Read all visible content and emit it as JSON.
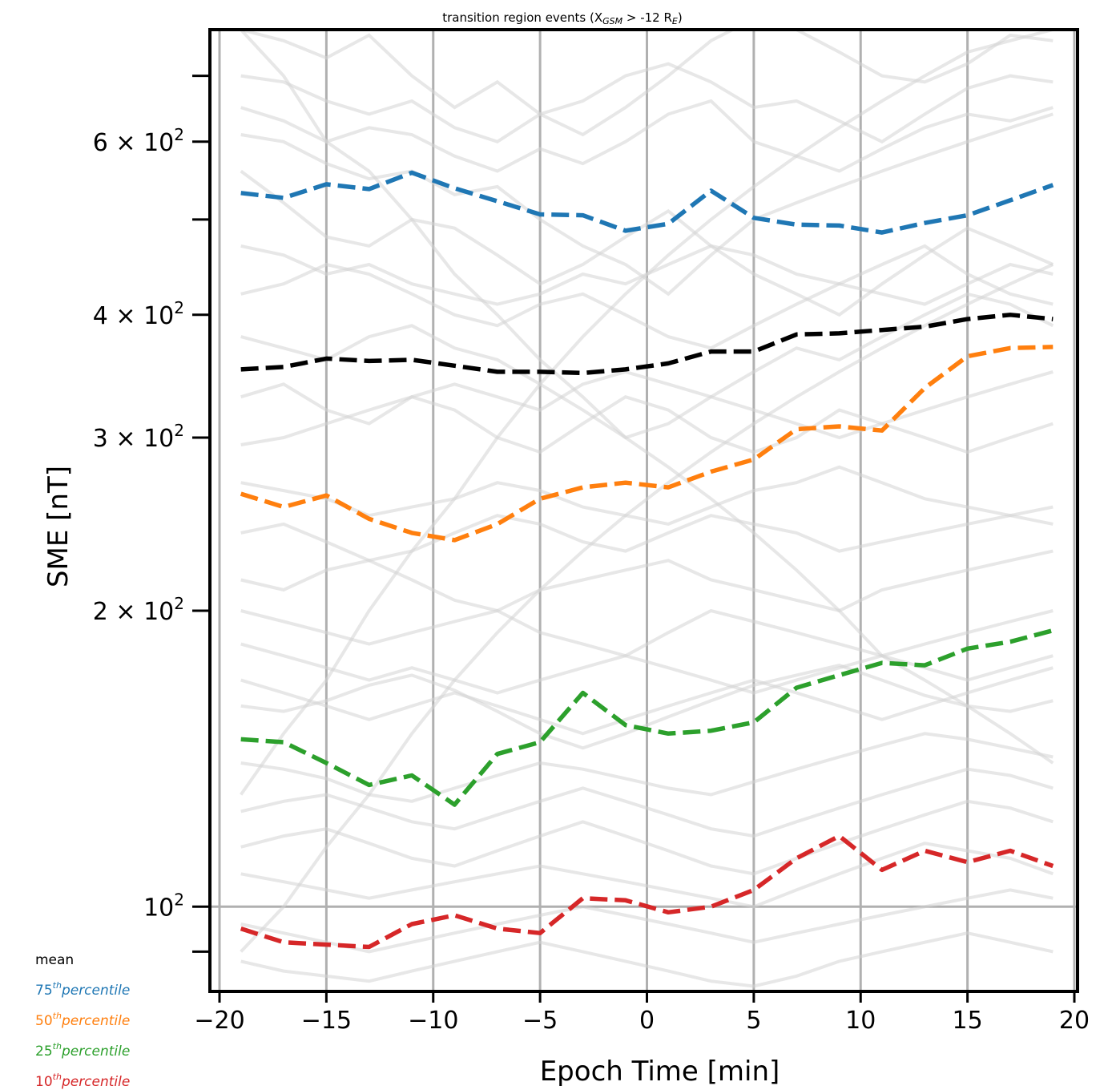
{
  "chart_data": {
    "type": "line",
    "title_prefix": "transition region events (X",
    "title_subscript": "GSM",
    "title_middle": " > -12 R",
    "title_subscript2": "E",
    "title_suffix": ")",
    "xlabel": "Epoch Time [min]",
    "ylabel": "SME [nT]",
    "xlim": [
      -20,
      20
    ],
    "ylim": [
      82,
      780
    ],
    "yscale": "log",
    "grid": "vertical lines on x ticks, horizontal line at 10^2",
    "x_ticks": [
      -20,
      -15,
      -10,
      -5,
      0,
      5,
      10,
      15,
      20
    ],
    "x_tick_labels": [
      "−20",
      "−15",
      "−10",
      "−5",
      "0",
      "5",
      "10",
      "15",
      "20"
    ],
    "y_ticks": [
      {
        "value": 100,
        "base": "10",
        "exp": "2",
        "coef": ""
      },
      {
        "value": 200,
        "base": "10",
        "exp": "2",
        "coef": "2 × "
      },
      {
        "value": 300,
        "base": "10",
        "exp": "2",
        "coef": "3 × "
      },
      {
        "value": 400,
        "base": "10",
        "exp": "2",
        "coef": "4 × "
      },
      {
        "value": 600,
        "base": "10",
        "exp": "2",
        "coef": "6 × "
      }
    ],
    "y_minor_ticks": [
      90,
      500,
      700
    ],
    "x": [
      -19,
      -17,
      -15,
      -13,
      -11,
      -9,
      -7,
      -5,
      -3,
      -1,
      1,
      3,
      5,
      7,
      9,
      11,
      13,
      15,
      17,
      19
    ],
    "series": [
      {
        "name": "mean",
        "color": "#000000",
        "values": [
          352,
          354,
          361,
          359,
          360,
          355,
          350,
          350,
          349,
          352,
          357,
          367,
          367,
          382,
          383,
          386,
          389,
          396,
          400,
          396
        ]
      },
      {
        "name": "75th percentile",
        "color": "#1f77b4",
        "values": [
          532,
          526,
          543,
          537,
          558,
          538,
          522,
          506,
          505,
          487,
          495,
          535,
          502,
          494,
          493,
          485,
          496,
          505,
          523,
          542
        ]
      },
      {
        "name": "50th percentile",
        "color": "#ff7f0e",
        "values": [
          263,
          255,
          262,
          248,
          240,
          236,
          245,
          260,
          267,
          270,
          267,
          277,
          285,
          306,
          308,
          305,
          337,
          363,
          370,
          371
        ]
      },
      {
        "name": "25th percentile",
        "color": "#2ca02c",
        "values": [
          148,
          147,
          140,
          133,
          136,
          127,
          143,
          147,
          165,
          153,
          150,
          151,
          154,
          167,
          172,
          177,
          176,
          183,
          186,
          191
        ]
      },
      {
        "name": "10th percentile",
        "color": "#d62728",
        "values": [
          95,
          92,
          91.5,
          91,
          96,
          98,
          95,
          94,
          102,
          101.5,
          98.7,
          100,
          104,
          112,
          118,
          109,
          114,
          111,
          114,
          110
        ]
      }
    ],
    "background_lines_color": "#d3d3d3",
    "background_lines": [
      [
        780,
        760,
        730,
        770,
        700,
        650,
        690,
        640,
        610,
        650,
        700,
        760,
        800,
        780,
        740,
        700,
        690,
        720,
        770,
        760
      ],
      [
        700,
        690,
        660,
        640,
        660,
        620,
        600,
        640,
        660,
        700,
        720,
        690,
        650,
        660,
        630,
        600,
        640,
        680,
        700,
        690
      ],
      [
        650,
        630,
        600,
        620,
        610,
        580,
        560,
        590,
        570,
        600,
        640,
        660,
        600,
        580,
        560,
        590,
        620,
        640,
        630,
        650
      ],
      [
        610,
        600,
        570,
        550,
        560,
        530,
        540,
        500,
        470,
        450,
        420,
        460,
        500,
        520,
        540,
        560,
        580,
        600,
        620,
        640
      ],
      [
        560,
        520,
        480,
        470,
        500,
        490,
        460,
        430,
        450,
        480,
        510,
        470,
        440,
        420,
        400,
        430,
        460,
        490,
        470,
        450
      ],
      [
        470,
        460,
        440,
        450,
        430,
        420,
        410,
        420,
        440,
        430,
        450,
        470,
        460,
        440,
        430,
        420,
        410,
        430,
        450,
        440
      ],
      [
        420,
        430,
        450,
        440,
        420,
        400,
        390,
        410,
        420,
        400,
        380,
        370,
        390,
        410,
        430,
        450,
        470,
        440,
        420,
        410
      ],
      [
        380,
        370,
        360,
        380,
        390,
        370,
        360,
        340,
        320,
        300,
        310,
        330,
        350,
        370,
        360,
        380,
        400,
        420,
        410,
        390
      ],
      [
        330,
        340,
        320,
        310,
        330,
        320,
        300,
        290,
        310,
        330,
        320,
        300,
        290,
        300,
        320,
        310,
        300,
        290,
        300,
        310
      ],
      [
        295,
        300,
        310,
        320,
        330,
        340,
        330,
        320,
        340,
        350,
        340,
        330,
        320,
        310,
        300,
        310,
        320,
        330,
        340,
        350
      ],
      [
        270,
        265,
        260,
        250,
        255,
        260,
        270,
        265,
        255,
        250,
        245,
        255,
        265,
        270,
        280,
        270,
        260,
        255,
        250,
        245
      ],
      [
        240,
        245,
        235,
        225,
        230,
        240,
        250,
        245,
        235,
        230,
        240,
        250,
        245,
        240,
        230,
        235,
        240,
        245,
        250,
        255
      ],
      [
        215,
        210,
        220,
        225,
        215,
        205,
        200,
        210,
        215,
        220,
        225,
        215,
        210,
        205,
        200,
        210,
        215,
        220,
        225,
        230
      ],
      [
        200,
        195,
        190,
        185,
        190,
        195,
        200,
        190,
        185,
        180,
        190,
        200,
        195,
        190,
        185,
        180,
        185,
        190,
        195,
        200
      ],
      [
        185,
        180,
        175,
        170,
        175,
        170,
        165,
        170,
        175,
        180,
        175,
        170,
        165,
        170,
        175,
        180,
        175,
        170,
        175,
        180
      ],
      [
        170,
        165,
        160,
        155,
        160,
        165,
        160,
        155,
        150,
        155,
        160,
        165,
        170,
        165,
        160,
        155,
        160,
        165,
        170,
        175
      ],
      [
        160,
        158,
        162,
        168,
        172,
        166,
        158,
        150,
        145,
        150,
        156,
        162,
        168,
        172,
        176,
        170,
        164,
        160,
        158,
        162
      ],
      [
        140,
        138,
        135,
        130,
        128,
        132,
        136,
        140,
        138,
        135,
        132,
        130,
        134,
        138,
        142,
        146,
        150,
        148,
        145,
        142
      ],
      [
        125,
        128,
        130,
        126,
        122,
        120,
        124,
        128,
        132,
        128,
        124,
        120,
        118,
        122,
        126,
        130,
        134,
        138,
        136,
        132
      ],
      [
        115,
        118,
        120,
        116,
        112,
        110,
        114,
        118,
        122,
        118,
        114,
        110,
        108,
        112,
        116,
        120,
        124,
        128,
        126,
        122
      ],
      [
        108,
        106,
        104,
        102,
        104,
        106,
        108,
        110,
        108,
        106,
        104,
        102,
        100,
        104,
        108,
        112,
        116,
        114,
        112,
        108
      ],
      [
        96,
        94,
        92,
        90,
        92,
        94,
        96,
        98,
        100,
        98,
        96,
        94,
        92,
        94,
        96,
        98,
        100,
        102,
        104,
        102
      ],
      [
        88,
        86,
        85,
        84,
        86,
        88,
        90,
        92,
        90,
        88,
        86,
        84,
        83,
        85,
        88,
        90,
        92,
        94,
        92,
        90
      ],
      [
        780,
        700,
        600,
        560,
        500,
        440,
        400,
        360,
        330,
        300,
        280,
        260,
        240,
        220,
        200,
        180,
        170,
        160,
        150,
        140
      ],
      [
        130,
        150,
        170,
        200,
        230,
        260,
        300,
        340,
        380,
        420,
        460,
        500,
        540,
        580,
        620,
        660,
        700,
        740,
        760,
        780
      ],
      [
        90,
        100,
        115,
        130,
        150,
        170,
        190,
        210,
        230,
        250,
        270,
        290,
        310,
        330,
        350,
        370,
        390,
        410,
        430,
        450
      ]
    ],
    "legend_position": "bottom-left, outside axes",
    "legend": [
      {
        "main": "mean",
        "sup": "",
        "suffix": "",
        "color": "#000000"
      },
      {
        "main": "75",
        "sup": "th",
        "suffix": "percentile",
        "color": "#1f77b4"
      },
      {
        "main": "50",
        "sup": "th",
        "suffix": "percentile",
        "color": "#ff7f0e"
      },
      {
        "main": "25",
        "sup": "th",
        "suffix": "percentile",
        "color": "#2ca02c"
      },
      {
        "main": "10",
        "sup": "th",
        "suffix": "percentile",
        "color": "#d62728"
      }
    ]
  }
}
